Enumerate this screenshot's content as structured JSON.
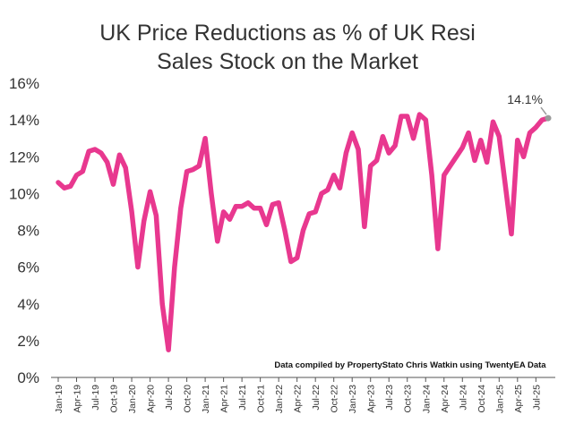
{
  "chart_data": {
    "type": "line",
    "title_lines": [
      "UK Price Reductions as % of UK Resi",
      "Sales Stock on the Market"
    ],
    "xlabel": "",
    "ylabel": "",
    "ylim": [
      0,
      16
    ],
    "ytick_values": [
      0,
      2,
      4,
      6,
      8,
      10,
      12,
      14,
      16
    ],
    "ytick_labels": [
      "0%",
      "2%",
      "4%",
      "6%",
      "8%",
      "10%",
      "12%",
      "14%",
      "16%"
    ],
    "x_start": "Jan-19",
    "xtick_labels": [
      "Jan-19",
      "Apr-19",
      "Jul-19",
      "Oct-19",
      "Jan-20",
      "Apr-20",
      "Jul-20",
      "Oct-20",
      "Jan-21",
      "Apr-21",
      "Jul-21",
      "Oct-21",
      "Jan-22",
      "Apr-22",
      "Jul-22",
      "Oct-22",
      "Jan-23",
      "Apr-23",
      "Jul-23",
      "Oct-23",
      "Jan-24",
      "Apr-24",
      "Jul-24",
      "Oct-24",
      "Jan-25",
      "Apr-25",
      "Jul-25"
    ],
    "grid": false,
    "series": [
      {
        "name": "UK Price Reductions %",
        "color": "#e8388f",
        "values": [
          10.6,
          10.3,
          10.4,
          11.0,
          11.2,
          12.3,
          12.4,
          12.2,
          11.7,
          10.5,
          12.1,
          11.4,
          9.0,
          6.0,
          8.5,
          10.1,
          8.8,
          4.0,
          1.5,
          6.0,
          9.2,
          11.2,
          11.3,
          11.5,
          13.0,
          10.0,
          7.4,
          9.0,
          8.6,
          9.3,
          9.3,
          9.5,
          9.2,
          9.2,
          8.3,
          9.4,
          9.5,
          8.0,
          6.3,
          6.5,
          8.0,
          8.9,
          9.0,
          10.0,
          10.2,
          11.0,
          10.3,
          12.2,
          13.3,
          12.4,
          8.2,
          11.5,
          11.8,
          13.1,
          12.2,
          12.6,
          14.2,
          14.2,
          13.0,
          14.3,
          14.0,
          11.0,
          7.0,
          11.0,
          11.5,
          12.0,
          12.5,
          13.3,
          11.8,
          12.9,
          11.7,
          13.9,
          13.1,
          10.5,
          7.8,
          12.9,
          12.0,
          13.3,
          13.6,
          14.0,
          14.1
        ]
      }
    ],
    "annotations": [
      {
        "text": "14.1%",
        "point": "last"
      }
    ],
    "source_note": "Data compiled by PropertyStato Chris Watkin using TwentyEA Data"
  }
}
